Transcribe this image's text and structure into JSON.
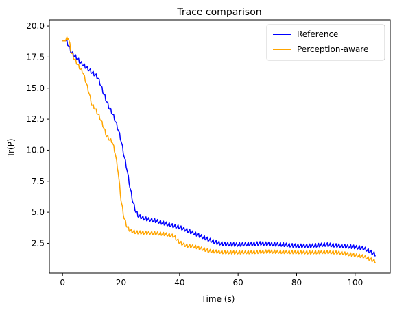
{
  "chart_data": {
    "type": "line",
    "title": "Trace comparison",
    "xlabel": "Time (s)",
    "ylabel": "Tr(P)",
    "xlim": [
      -4.5,
      112
    ],
    "ylim": [
      0.1,
      20.5
    ],
    "xticks": [
      0,
      20,
      40,
      60,
      80,
      100
    ],
    "yticks": [
      2.5,
      5.0,
      7.5,
      10.0,
      12.5,
      15.0,
      17.5,
      20.0
    ],
    "xtick_labels": [
      "0",
      "20",
      "40",
      "60",
      "80",
      "100"
    ],
    "ytick_labels": [
      "2.5",
      "5.0",
      "7.5",
      "10.0",
      "12.5",
      "15.0",
      "17.5",
      "20.0"
    ],
    "grid": false,
    "legend_position": "top-right",
    "series": [
      {
        "name": "Reference",
        "color": "#0000ff",
        "oscillation": 0.25,
        "x": [
          0,
          1,
          2,
          3,
          5,
          6,
          7,
          8,
          9,
          10,
          11,
          12,
          13,
          14,
          15,
          16,
          17,
          18,
          19,
          20,
          21,
          22,
          23,
          24,
          25,
          26,
          28,
          30,
          32,
          35,
          38,
          40,
          42,
          45,
          48,
          50,
          52,
          55,
          60,
          65,
          68,
          70,
          75,
          80,
          85,
          90,
          92,
          95,
          100,
          103,
          105,
          107
        ],
        "y": [
          18.8,
          18.8,
          18.4,
          17.8,
          17.3,
          17.0,
          16.8,
          16.6,
          16.4,
          16.2,
          16.0,
          15.8,
          15.2,
          14.5,
          13.9,
          13.3,
          12.9,
          12.3,
          11.6,
          10.7,
          9.5,
          8.4,
          7.0,
          5.8,
          5.0,
          4.6,
          4.4,
          4.3,
          4.2,
          4.0,
          3.8,
          3.7,
          3.5,
          3.2,
          2.9,
          2.7,
          2.5,
          2.35,
          2.3,
          2.35,
          2.4,
          2.35,
          2.3,
          2.2,
          2.2,
          2.3,
          2.25,
          2.2,
          2.1,
          2.0,
          1.75,
          1.5
        ]
      },
      {
        "name": "Perception-aware",
        "color": "#ffa500",
        "oscillation": 0.22,
        "x": [
          0,
          1,
          2,
          3,
          4,
          5,
          6,
          7,
          8,
          9,
          10,
          11,
          12,
          13,
          14,
          15,
          16,
          17,
          18,
          19,
          20,
          21,
          22,
          23,
          25,
          30,
          35,
          38,
          40,
          42,
          45,
          48,
          50,
          55,
          60,
          65,
          70,
          75,
          80,
          85,
          90,
          95,
          100,
          103,
          105,
          107
        ],
        "y": [
          18.8,
          18.8,
          19.0,
          17.8,
          17.3,
          16.9,
          16.5,
          16.2,
          15.4,
          14.6,
          13.6,
          13.3,
          12.9,
          12.4,
          11.8,
          11.1,
          10.8,
          10.6,
          9.7,
          8.2,
          5.9,
          4.5,
          3.8,
          3.45,
          3.3,
          3.25,
          3.15,
          3.0,
          2.5,
          2.25,
          2.15,
          1.95,
          1.8,
          1.7,
          1.68,
          1.7,
          1.75,
          1.72,
          1.7,
          1.68,
          1.72,
          1.65,
          1.45,
          1.35,
          1.15,
          0.95
        ]
      }
    ]
  }
}
